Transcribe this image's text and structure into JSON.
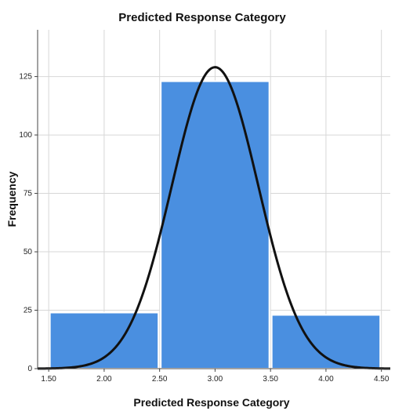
{
  "chart_data": {
    "type": "bar",
    "title": "Predicted Response Category",
    "xlabel": "Predicted Response Category",
    "ylabel": "Frequency",
    "x_bins": [
      {
        "start": 1.5,
        "end": 2.5,
        "value": 24
      },
      {
        "start": 2.5,
        "end": 3.5,
        "value": 123
      },
      {
        "start": 3.5,
        "end": 4.5,
        "value": 23
      }
    ],
    "x_ticks": [
      "1.50",
      "2.00",
      "2.50",
      "3.00",
      "3.50",
      "4.00",
      "4.50"
    ],
    "y_ticks": [
      "0",
      "25",
      "50",
      "75",
      "100",
      "125"
    ],
    "xlim": [
      1.4,
      4.58
    ],
    "ylim": [
      0,
      145
    ],
    "grid": true,
    "normal_curve": {
      "mean": 3.0,
      "peak": 129,
      "sd": 0.39,
      "color": "#111111"
    },
    "colors": {
      "bar_fill": "#4a8fe0",
      "bar_stroke": "#ffffff",
      "grid": "#d7d7d7",
      "axis": "#444444",
      "background": "#ffffff"
    }
  }
}
